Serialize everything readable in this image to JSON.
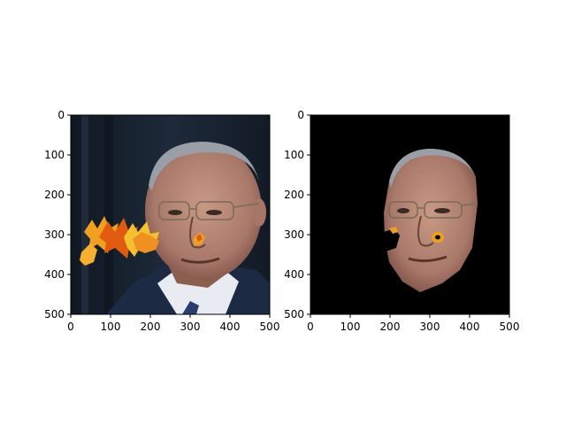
{
  "figure": {
    "panels": [
      {
        "name": "original-with-leaves",
        "xticks": [
          "0",
          "100",
          "200",
          "300",
          "400",
          "500"
        ],
        "yticks": [
          "0",
          "100",
          "200",
          "300",
          "400",
          "500"
        ],
        "background": "#1a2433"
      },
      {
        "name": "masked-face",
        "xticks": [
          "0",
          "100",
          "200",
          "300",
          "400",
          "500"
        ],
        "yticks": [
          "0",
          "100",
          "200",
          "300",
          "400",
          "500"
        ],
        "background": "#000000"
      }
    ],
    "colors": {
      "skin": "#b88a74",
      "skin_shadow": "#8a5f4e",
      "hair": "#9a9ea6",
      "suit": "#1c2a44",
      "shirt": "#e8ecf2",
      "tie": "#2a3d6e",
      "leaf_orange": "#f0a020",
      "leaf_red": "#e05a10",
      "leaf_yellow": "#f5c030"
    }
  }
}
